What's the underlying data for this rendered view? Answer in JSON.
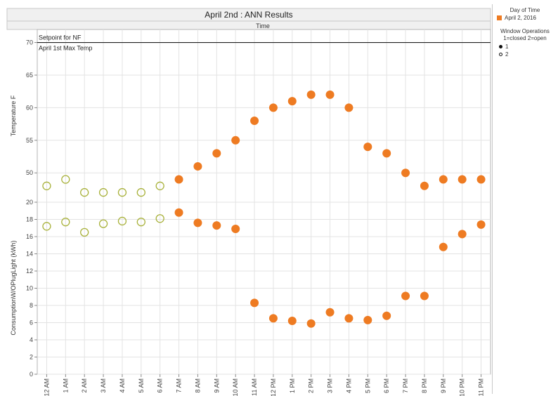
{
  "chart_data": {
    "title": "April 2nd : ANN Results",
    "top_axis_label": "Time",
    "type": "scatter",
    "colors": {
      "point": "#ee7b22",
      "open_point": "#a9b23c",
      "ref_line": "#222222",
      "grid": "#e3e3e3"
    },
    "categories": [
      "12 AM",
      "1 AM",
      "2 AM",
      "3 AM",
      "4 AM",
      "5 AM",
      "6 AM",
      "7 AM",
      "8 AM",
      "9 AM",
      "10 AM",
      "11 AM",
      "12 PM",
      "1 PM",
      "2 PM",
      "3 PM",
      "4 PM",
      "5 PM",
      "6 PM",
      "7 PM",
      "8 PM",
      "9 PM",
      "10 PM",
      "11 PM"
    ],
    "window_state": [
      2,
      2,
      2,
      2,
      2,
      2,
      2,
      1,
      1,
      1,
      1,
      1,
      1,
      1,
      1,
      1,
      1,
      1,
      1,
      1,
      1,
      1,
      1,
      1
    ],
    "panels": [
      {
        "ylabel": "Temperature F",
        "ylim": [
          45.5,
          72
        ],
        "yticks": [
          50,
          55,
          60,
          65,
          70
        ],
        "values": [
          48,
          49,
          47,
          47,
          47,
          47,
          48,
          49,
          51,
          53,
          55,
          58,
          60,
          61,
          62,
          62,
          60,
          54,
          53,
          50,
          48,
          49,
          49,
          49
        ],
        "reference_line": {
          "y": 70,
          "label_above": "Setpoint for NF",
          "label_below": "April 1st Max Temp"
        }
      },
      {
        "ylabel": "ConsumptionW/OPlugLight (kWh)",
        "ylim": [
          0,
          20
        ],
        "yticks": [
          0,
          2,
          4,
          6,
          8,
          10,
          12,
          14,
          16,
          18,
          20
        ],
        "values": [
          17.2,
          17.7,
          16.5,
          17.5,
          17.8,
          17.7,
          18.1,
          18.8,
          17.6,
          17.3,
          16.9,
          8.3,
          6.5,
          6.2,
          5.9,
          7.2,
          6.5,
          6.3,
          6.8,
          9.1,
          9.1,
          14.8,
          16.3,
          17.4
        ]
      }
    ],
    "legend": {
      "title": "Day of Time",
      "series": [
        "April 2, 2016"
      ],
      "marker_title": "Window Operations",
      "marker_subtitle": "1=closed 2=open",
      "marker_items": [
        "1",
        "2"
      ]
    },
    "grid": true,
    "legend_position": "right"
  }
}
